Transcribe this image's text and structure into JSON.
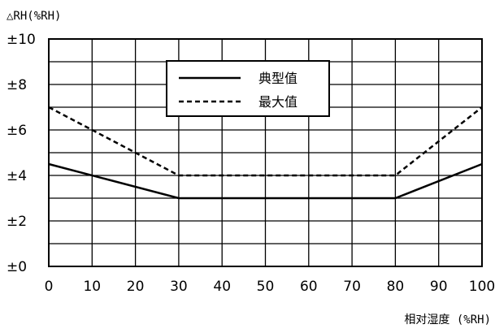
{
  "chart_data": {
    "type": "line",
    "ylabel": "△RH(%RH)",
    "xlabel": "相对湿度 (%RH)",
    "xlim": [
      0,
      100
    ],
    "ylim": [
      0,
      10
    ],
    "x_ticks": [
      0,
      10,
      20,
      30,
      40,
      50,
      60,
      70,
      80,
      90,
      100
    ],
    "x_tick_labels": [
      "0",
      "10",
      "20",
      "30",
      "40",
      "50",
      "60",
      "70",
      "80",
      "90",
      "100"
    ],
    "y_ticks": [
      0,
      2,
      4,
      6,
      8,
      10
    ],
    "y_tick_labels": [
      "±0",
      "±2",
      "±4",
      "±6",
      "±8",
      "±10"
    ],
    "grid": true,
    "legend_position": "top-center",
    "series": [
      {
        "name": "典型值",
        "style": "solid",
        "color": "#000000",
        "x": [
          0,
          30,
          80,
          100
        ],
        "values": [
          4.5,
          3,
          3,
          4.5
        ]
      },
      {
        "name": "最大值",
        "style": "dashed",
        "color": "#000000",
        "x": [
          0,
          30,
          80,
          100
        ],
        "values": [
          7,
          4,
          4,
          7
        ]
      }
    ]
  }
}
